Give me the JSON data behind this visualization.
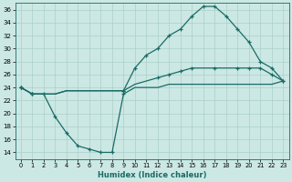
{
  "xlabel": "Humidex (Indice chaleur)",
  "background_color": "#cce8e4",
  "grid_color": "#aacfca",
  "line_color": "#1a6b65",
  "xlim": [
    -0.5,
    23.5
  ],
  "ylim": [
    13,
    37
  ],
  "yticks": [
    14,
    16,
    18,
    20,
    22,
    24,
    26,
    28,
    30,
    32,
    34,
    36
  ],
  "xticks": [
    0,
    1,
    2,
    3,
    4,
    5,
    6,
    7,
    8,
    9,
    10,
    11,
    12,
    13,
    14,
    15,
    16,
    17,
    18,
    19,
    20,
    21,
    22,
    23
  ],
  "line1_x": [
    0,
    1,
    2,
    3,
    4,
    5,
    6,
    7,
    8,
    9,
    10,
    11,
    12,
    13,
    14,
    15,
    16,
    17,
    18,
    19,
    20,
    21,
    22,
    23
  ],
  "line1_y": [
    24,
    23,
    23,
    19.5,
    17,
    15,
    14.5,
    14,
    14,
    23,
    24,
    24,
    24,
    24.5,
    24.5,
    24.5,
    24.5,
    24.5,
    24.5,
    24.5,
    24.5,
    24.5,
    24.5,
    25
  ],
  "line2_x": [
    0,
    1,
    2,
    3,
    4,
    5,
    6,
    7,
    8,
    9,
    10,
    11,
    12,
    13,
    14,
    15,
    16,
    17,
    18,
    19,
    20,
    21,
    22,
    23
  ],
  "line2_y": [
    24,
    23,
    23,
    23,
    23.5,
    23.5,
    23.5,
    23.5,
    23.5,
    23.5,
    24.5,
    25,
    25.5,
    26,
    26.5,
    27,
    27,
    27,
    27,
    27,
    27,
    27,
    26,
    25
  ],
  "line3_x": [
    0,
    1,
    2,
    3,
    4,
    5,
    6,
    7,
    8,
    9,
    10,
    11,
    12,
    13,
    14,
    15,
    16,
    17,
    18,
    19,
    20,
    21,
    22,
    23
  ],
  "line3_y": [
    24,
    23,
    23,
    23,
    23.5,
    23.5,
    23.5,
    23.5,
    23.5,
    23.5,
    27,
    29,
    30,
    32,
    33,
    35,
    36.5,
    36.5,
    35,
    33,
    31,
    28,
    27,
    25
  ],
  "line1_markers": [
    0,
    1,
    2,
    3,
    4,
    5,
    6,
    7,
    8,
    9
  ],
  "line2_markers": [
    0,
    1,
    9,
    12,
    13,
    14,
    15,
    17,
    19,
    20,
    21,
    22,
    23
  ],
  "line3_markers": [
    0,
    1,
    9,
    10,
    11,
    12,
    13,
    14,
    15,
    16,
    17,
    18,
    19,
    20,
    21,
    22,
    23
  ]
}
